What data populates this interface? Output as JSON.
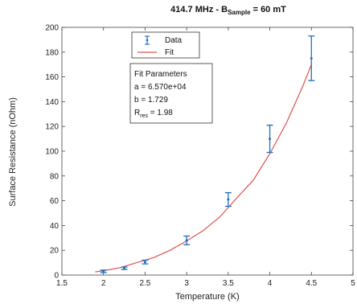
{
  "chart_data": {
    "type": "scatter",
    "title_main": "414.7 MHz - B",
    "title_sub": "Sample",
    "title_tail": " = 60 mT",
    "xlabel": "Temperature (K)",
    "ylabel": "Surface Resistance (nOhm)",
    "xlim": [
      1.5,
      5
    ],
    "ylim": [
      0,
      200
    ],
    "xticks": [
      "1.5",
      "2",
      "2.5",
      "3",
      "3.5",
      "4",
      "4.5",
      "5"
    ],
    "yticks": [
      "0",
      "20",
      "40",
      "60",
      "80",
      "100",
      "120",
      "140",
      "160",
      "180",
      "200"
    ],
    "grid": false,
    "legend": {
      "placement": "top",
      "entries": [
        {
          "label": "Data",
          "kind": "errorbar",
          "color": "#1f6fbf"
        },
        {
          "label": "Fit",
          "kind": "line",
          "color": "#e05050"
        }
      ]
    },
    "fit_params": {
      "heading": "Fit Parameters",
      "a": "a = 6.570e+04",
      "b": "b = 1.729",
      "r_main": "R",
      "r_sub": "res",
      "r_tail": " = 1.98"
    },
    "series": [
      {
        "name": "Data",
        "color": "#1f6fbf",
        "x": [
          2.0,
          2.25,
          2.5,
          3.0,
          3.5,
          4.0,
          4.5
        ],
        "y": [
          3.0,
          5.5,
          10.5,
          28.0,
          61.0,
          110.0,
          175.0
        ],
        "err": [
          1.0,
          1.0,
          1.5,
          3.5,
          5.5,
          11.0,
          18.0
        ]
      },
      {
        "name": "Fit",
        "color": "#e05050",
        "x": [
          1.9,
          2.0,
          2.2,
          2.4,
          2.6,
          2.8,
          3.0,
          3.2,
          3.4,
          3.6,
          3.8,
          4.0,
          4.2,
          4.4,
          4.5
        ],
        "y": [
          2.5,
          3.5,
          6.0,
          10.0,
          14.0,
          20.0,
          27.5,
          36.0,
          47.0,
          62.0,
          76.5,
          98.0,
          123.0,
          153.0,
          170.0
        ]
      }
    ]
  }
}
